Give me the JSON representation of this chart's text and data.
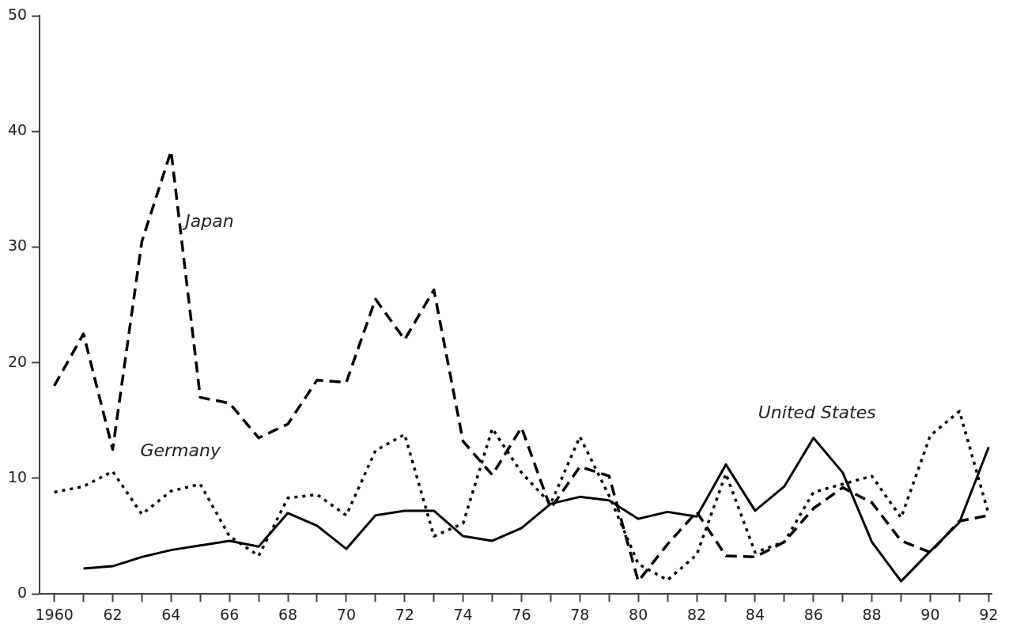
{
  "chart_data": {
    "type": "line",
    "x": [
      1960,
      1961,
      1962,
      1963,
      1964,
      1965,
      1966,
      1967,
      1968,
      1969,
      1970,
      1971,
      1972,
      1973,
      1974,
      1975,
      1976,
      1977,
      1978,
      1979,
      1980,
      1981,
      1982,
      1983,
      1984,
      1985,
      1986,
      1987,
      1988,
      1989,
      1990,
      1991,
      1992
    ],
    "series": [
      {
        "name": "Japan",
        "color": "#000000",
        "line_style": "dashed",
        "values": [
          18,
          22.5,
          12.5,
          30.5,
          38.3,
          17,
          16.5,
          13.5,
          14.7,
          18.5,
          18.3,
          25.5,
          22,
          26.3,
          13.2,
          10.3,
          14.4,
          7.4,
          11,
          10.2,
          1.1,
          4.3,
          7.1,
          3.3,
          3.2,
          4.5,
          7.4,
          9.2,
          7.9,
          4.6,
          3.6,
          6.3,
          6.8
        ]
      },
      {
        "name": "Germany",
        "color": "#000000",
        "line_style": "dotted",
        "values": [
          8.8,
          9.3,
          10.6,
          6.9,
          8.9,
          9.5,
          5,
          3.3,
          8.3,
          8.6,
          6.8,
          12.4,
          13.8,
          5,
          6.1,
          14.3,
          10.5,
          7.8,
          13.6,
          8.5,
          2.6,
          1.2,
          3.4,
          10.4,
          3.6,
          4.5,
          8.8,
          9.5,
          10.2,
          6.6,
          13.7,
          15.8,
          6.9
        ]
      },
      {
        "name": "United States",
        "color": "#000000",
        "line_style": "solid",
        "values": [
          null,
          2.2,
          2.4,
          3.2,
          3.8,
          4.2,
          4.6,
          4.1,
          7,
          5.9,
          3.9,
          6.8,
          7.2,
          7.2,
          5,
          4.6,
          5.7,
          7.8,
          8.4,
          8.1,
          6.5,
          7.1,
          6.7,
          11.2,
          7.2,
          9.3,
          13.5,
          10.5,
          4.5,
          1.1,
          3.7,
          6.2,
          12.7
        ]
      }
    ],
    "xlim": [
      1959.5,
      1992.1
    ],
    "xticks": [
      {
        "value": 1960,
        "label": "1960"
      },
      {
        "value": 1961,
        "label": null
      },
      {
        "value": 1962,
        "label": "62"
      },
      {
        "value": 1963,
        "label": null
      },
      {
        "value": 1964,
        "label": "64"
      },
      {
        "value": 1965,
        "label": null
      },
      {
        "value": 1966,
        "label": "66"
      },
      {
        "value": 1967,
        "label": null
      },
      {
        "value": 1968,
        "label": "68"
      },
      {
        "value": 1969,
        "label": null
      },
      {
        "value": 1970,
        "label": "70"
      },
      {
        "value": 1971,
        "label": null
      },
      {
        "value": 1972,
        "label": "72"
      },
      {
        "value": 1973,
        "label": null
      },
      {
        "value": 1974,
        "label": "74"
      },
      {
        "value": 1975,
        "label": null
      },
      {
        "value": 1976,
        "label": "76"
      },
      {
        "value": 1977,
        "label": null
      },
      {
        "value": 1978,
        "label": "78"
      },
      {
        "value": 1979,
        "label": null
      },
      {
        "value": 1980,
        "label": "80"
      },
      {
        "value": 1981,
        "label": null
      },
      {
        "value": 1982,
        "label": "82"
      },
      {
        "value": 1983,
        "label": null
      },
      {
        "value": 1984,
        "label": "84"
      },
      {
        "value": 1985,
        "label": null
      },
      {
        "value": 1986,
        "label": "86"
      },
      {
        "value": 1987,
        "label": null
      },
      {
        "value": 1988,
        "label": "88"
      },
      {
        "value": 1989,
        "label": null
      },
      {
        "value": 1990,
        "label": "90"
      },
      {
        "value": 1991,
        "label": null
      },
      {
        "value": 1992,
        "label": "92"
      }
    ],
    "ylim": [
      0,
      50
    ],
    "yticks": [
      0,
      10,
      20,
      30,
      40,
      50
    ],
    "grid": false,
    "legend": false,
    "marker": "none"
  }
}
